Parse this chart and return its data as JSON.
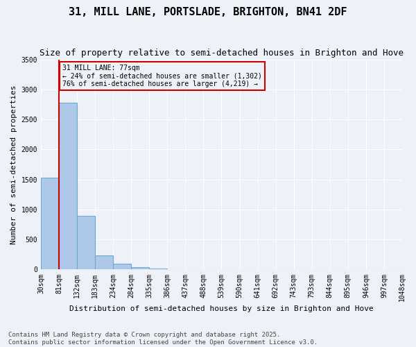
{
  "title": "31, MILL LANE, PORTSLADE, BRIGHTON, BN41 2DF",
  "subtitle": "Size of property relative to semi-detached houses in Brighton and Hove",
  "xlabel": "Distribution of semi-detached houses by size in Brighton and Hove",
  "ylabel": "Number of semi-detached properties",
  "footer_line1": "Contains HM Land Registry data © Crown copyright and database right 2025.",
  "footer_line2": "Contains public sector information licensed under the Open Government Licence v3.0.",
  "bin_labels": [
    "30sqm",
    "81sqm",
    "132sqm",
    "183sqm",
    "234sqm",
    "284sqm",
    "335sqm",
    "386sqm",
    "437sqm",
    "488sqm",
    "539sqm",
    "590sqm",
    "641sqm",
    "692sqm",
    "743sqm",
    "793sqm",
    "844sqm",
    "895sqm",
    "946sqm",
    "997sqm",
    "1048sqm"
  ],
  "values": [
    1530,
    2780,
    900,
    240,
    100,
    40,
    18,
    0,
    0,
    0,
    0,
    0,
    0,
    0,
    0,
    0,
    0,
    0,
    0,
    0
  ],
  "bar_color": "#adc8e8",
  "bar_edge_color": "#6aaad4",
  "property_line_label": "31 MILL LANE: 77sqm",
  "pct_smaller": 24,
  "pct_larger": 76,
  "count_smaller": 1302,
  "count_larger": 4219,
  "annotation_box_color": "#cc0000",
  "vline_color": "#cc0000",
  "vline_x": 0.5,
  "ylim": [
    0,
    3500
  ],
  "yticks": [
    0,
    500,
    1000,
    1500,
    2000,
    2500,
    3000,
    3500
  ],
  "background_color": "#eef2f8",
  "grid_color": "#ffffff",
  "title_fontsize": 11,
  "subtitle_fontsize": 9,
  "axis_label_fontsize": 8,
  "tick_fontsize": 7,
  "annotation_fontsize": 7,
  "footer_fontsize": 6.5
}
